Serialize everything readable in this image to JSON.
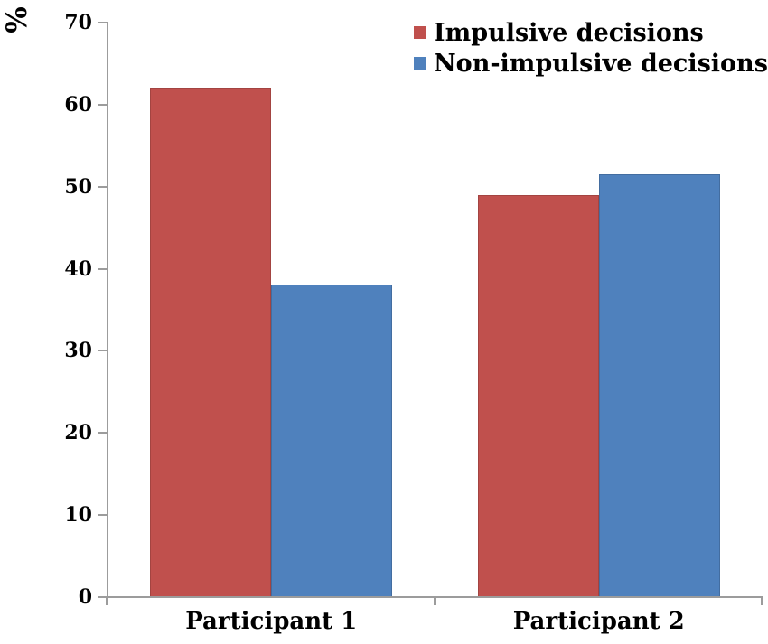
{
  "chart_data": {
    "type": "bar",
    "title": "",
    "ylabel": "%",
    "xlabel": "",
    "categories": [
      "Participant 1",
      "Participant 2"
    ],
    "series": [
      {
        "name": "Impulsive decisions",
        "color": "#C0504D",
        "values": [
          62.1,
          49.0
        ]
      },
      {
        "name": "Non-impulsive decisions",
        "color": "#4F81BD",
        "values": [
          38.1,
          51.5
        ]
      }
    ],
    "ylim": [
      0,
      70
    ],
    "yticks": [
      0,
      10,
      20,
      30,
      40,
      50,
      60,
      70
    ],
    "grid": false,
    "legend_position": "top-right",
    "axis_color": "#9C9C9C",
    "text_color": "#000000"
  }
}
